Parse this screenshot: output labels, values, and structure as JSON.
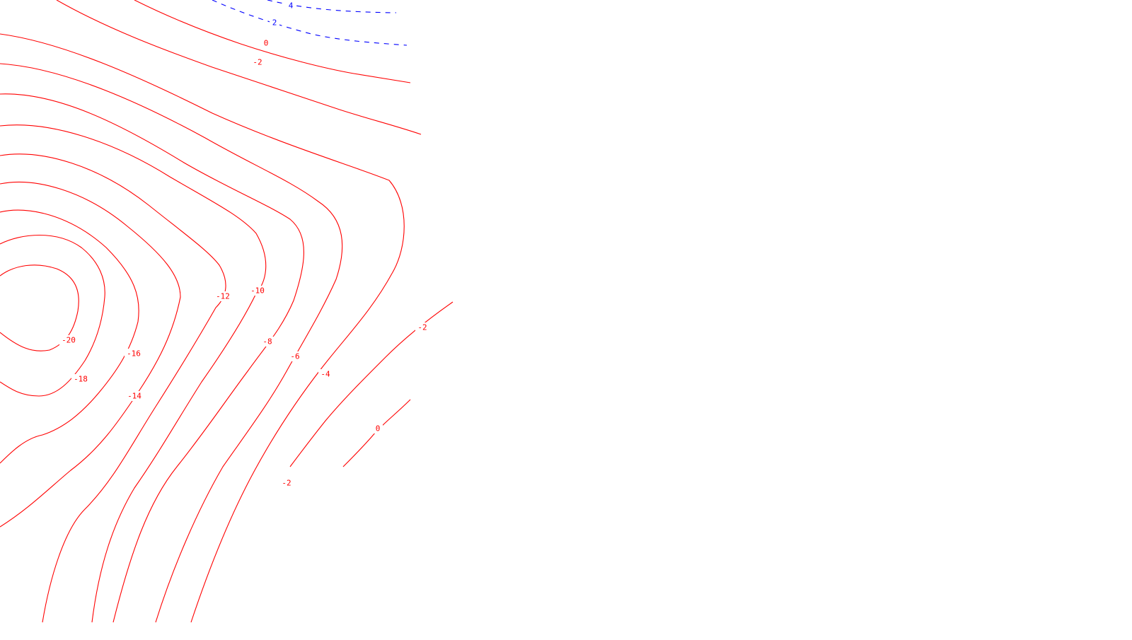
{
  "map": {
    "colors": {
      "negative_line": "#ff0000",
      "negative_label": "#ff0000",
      "positive_line": "#0000ff",
      "positive_label": "#0000ff",
      "background": "#ffffff"
    },
    "contour_labels": {
      "blue_4": "4",
      "blue_2": "2",
      "red_0_top": "0",
      "red_m2_top": "-2",
      "red_m20": "-20",
      "red_m18": "-18",
      "red_m16": "-16",
      "red_m14": "-14",
      "red_m12": "-12",
      "red_m10": "-10",
      "red_m8": "-8",
      "red_m6": "-6",
      "red_m4": "-4",
      "red_m2_bottom": "-2",
      "red_m2_right": "-2",
      "red_0_right": "0"
    }
  }
}
